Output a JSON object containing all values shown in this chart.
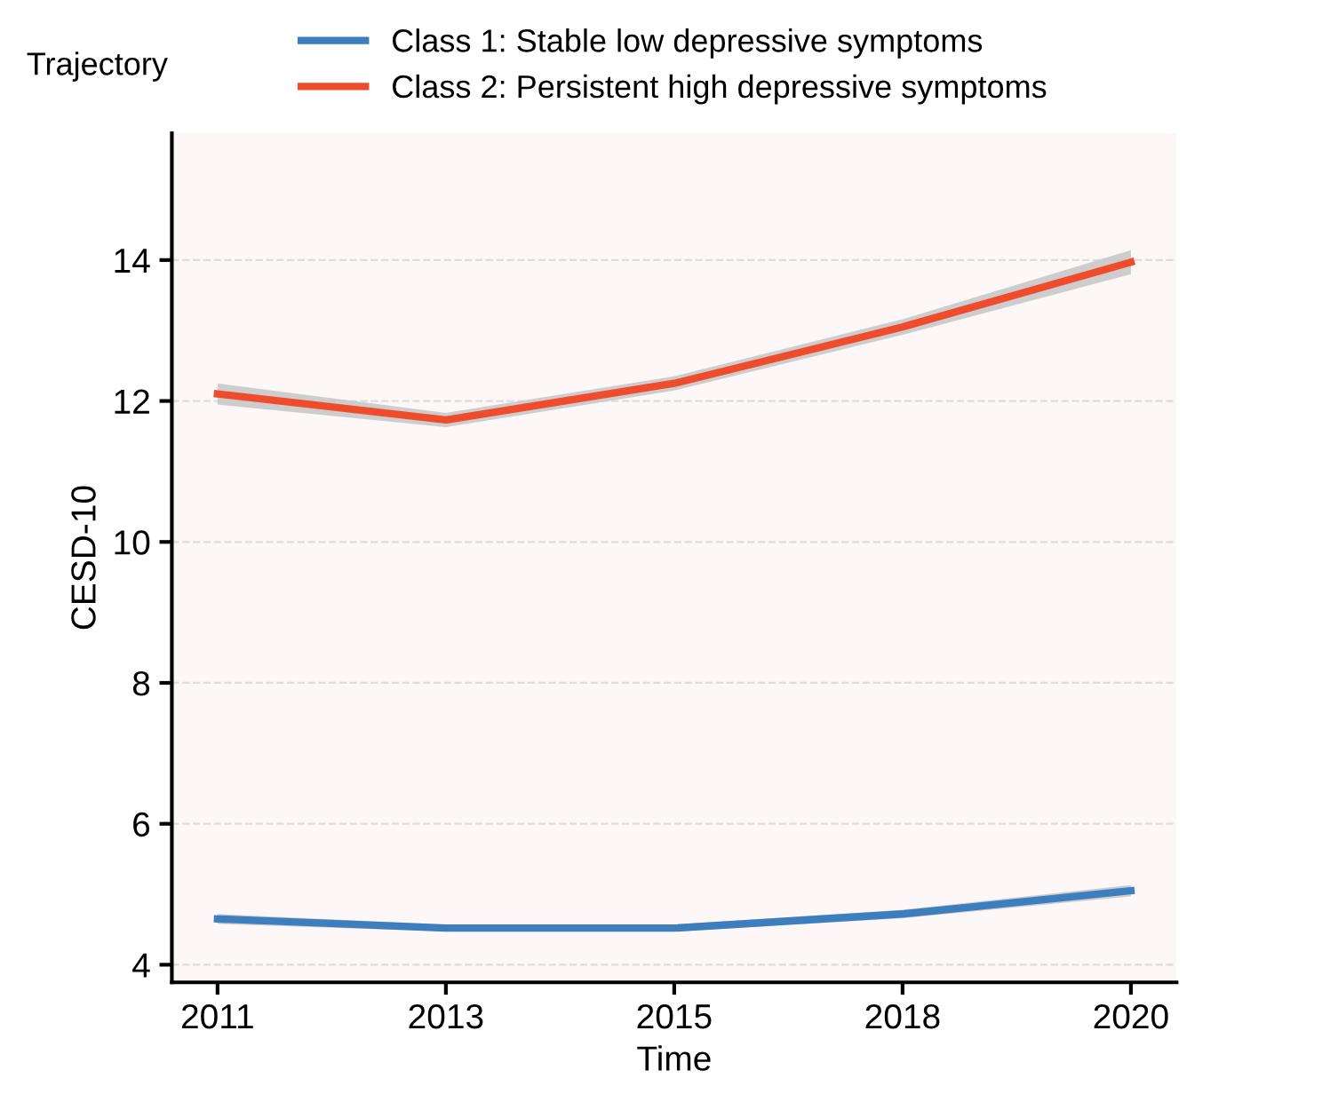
{
  "chart_data": {
    "type": "line",
    "xlabel": "Time",
    "ylabel": "CESD-10",
    "legend_title": "Trajectory",
    "legend": "top",
    "categories": [
      "2011",
      "2013",
      "2015",
      "2018",
      "2020"
    ],
    "ylim": [
      3.75,
      15.8
    ],
    "yticks": [
      4,
      6,
      8,
      10,
      12,
      14
    ],
    "grid": "y",
    "series": [
      {
        "name": "Class 1: Stable low depressive symptoms",
        "color": "#3d7ebf",
        "values": [
          4.65,
          4.52,
          4.52,
          4.72,
          5.05
        ],
        "lower": [
          4.58,
          4.47,
          4.47,
          4.66,
          4.97
        ],
        "upper": [
          4.72,
          4.57,
          4.57,
          4.78,
          5.13
        ]
      },
      {
        "name": "Class 2: Persistent high depressive symptoms",
        "color": "#ee4c2c",
        "values": [
          12.1,
          11.73,
          12.25,
          13.05,
          13.97
        ],
        "lower": [
          11.95,
          11.63,
          12.15,
          12.94,
          13.8
        ],
        "upper": [
          12.25,
          11.83,
          12.35,
          13.16,
          14.14
        ]
      }
    ]
  }
}
